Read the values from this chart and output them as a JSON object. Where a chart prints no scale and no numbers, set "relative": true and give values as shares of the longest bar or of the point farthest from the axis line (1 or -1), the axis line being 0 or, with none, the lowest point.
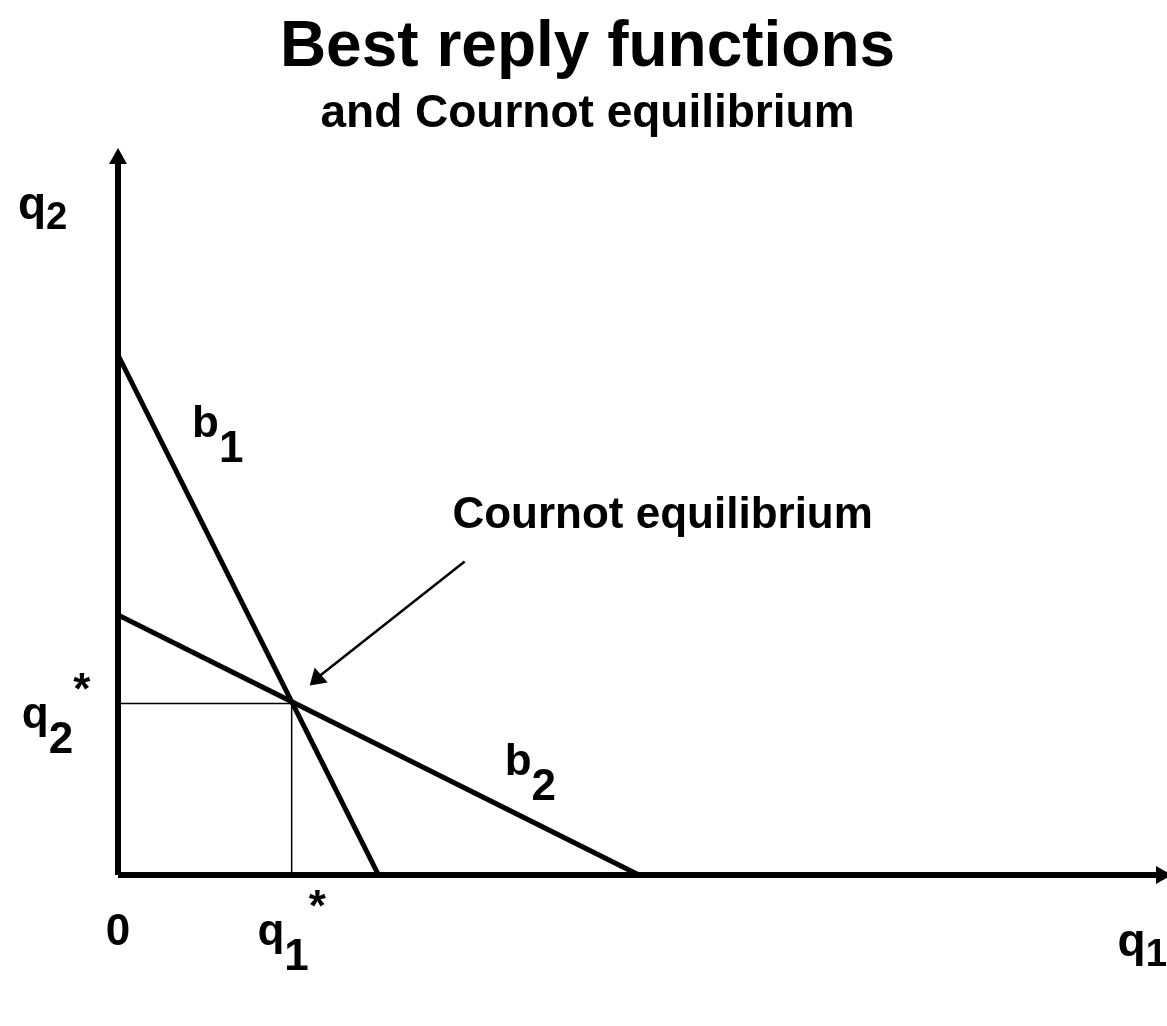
{
  "chart_data": {
    "type": "line",
    "title": "Best reply functions",
    "subtitle": "and Cournot equilibrium",
    "xlabel": "q$_{1}$",
    "ylabel": "q$_{2}$",
    "relative": true,
    "marker": "none",
    "line_style": "solid",
    "categories": [
      "0",
      null,
      "q$_{1}$$^{*}$",
      null,
      null,
      null,
      null,
      null,
      null,
      null,
      null,
      null,
      null
    ],
    "series": [
      {
        "name": "b$_{1}$",
        "color": "#000000",
        "values": [
          1,
          null,
          null,
          0,
          null,
          null,
          null,
          null,
          null,
          null,
          null,
          null,
          null
        ]
      },
      {
        "name": "b$_{2}$",
        "color": "#000000",
        "values": [
          0.5,
          null,
          null,
          null,
          null,
          null,
          0,
          null,
          null,
          null,
          null,
          null,
          null
        ]
      },
      {
        "type": "step",
        "color": "#000000",
        "values": [
          0.33,
          null,
          0.33,
          0,
          null,
          null,
          null,
          null,
          null,
          null,
          null,
          null,
          null
        ]
      }
    ],
    "annotations": [
      "q$_{2}$$^{*}$",
      "Cournot equilibrium"
    ]
  }
}
